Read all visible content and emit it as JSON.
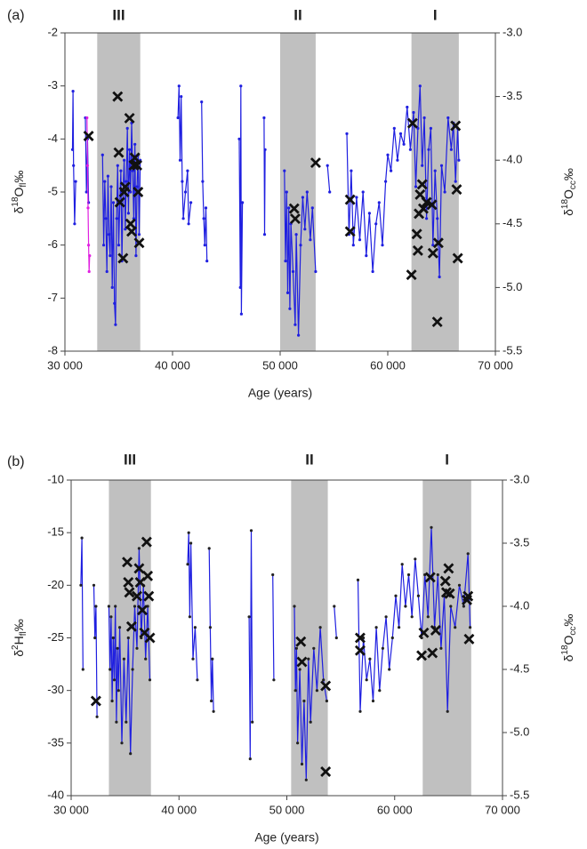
{
  "chart_data": [
    {
      "type": "line",
      "panel_label": "(a)",
      "shaded_regions": [
        {
          "label": "III",
          "xlim": [
            33000,
            37000
          ]
        },
        {
          "label": "II",
          "xlim": [
            50000,
            53300
          ]
        },
        {
          "label": "I",
          "xlim": [
            62200,
            66600
          ]
        }
      ],
      "region_color": "#c0c0c0",
      "x_label": "Age (years)",
      "y_label": {
        "base": "δ",
        "sup": "18",
        "main": "O",
        "sub": "fl",
        "unit": "‰"
      },
      "y2_label": {
        "base": "δ",
        "sup": "18",
        "main": "O",
        "sub": "cc",
        "unit": "‰"
      },
      "xlim": [
        30000,
        70000
      ],
      "xticks": [
        {
          "value": 30000,
          "label": "30 000"
        },
        {
          "value": 40000,
          "label": "40 000"
        },
        {
          "value": 50000,
          "label": "50 000"
        },
        {
          "value": 60000,
          "label": "60 000"
        },
        {
          "value": 70000,
          "label": "70 000"
        }
      ],
      "ylim": [
        -8,
        -2
      ],
      "yticks": [
        -8,
        -7,
        -6,
        -5,
        -4,
        -3,
        -2
      ],
      "y2lim": [
        -5.5,
        -3.0
      ],
      "y2ticks": [
        -5.5,
        {
          "value": -5,
          "label": "-5.0"
        },
        -4.5,
        {
          "value": -4,
          "label": "-4.0"
        },
        -3.5,
        {
          "value": -3,
          "label": "-3.0"
        }
      ],
      "series": [
        {
          "color": "#1f1fe0",
          "point_color": "#1f1fe0",
          "x": [
            30700,
            30750,
            30800,
            30900,
            31000,
            null,
            31900,
            32000,
            32100,
            32200,
            null,
            33500,
            33600,
            33700,
            33800,
            33900,
            34000,
            34100,
            34200,
            34300,
            34400,
            34500,
            34600,
            34700,
            34800,
            34900,
            35000,
            35100,
            35200,
            35300,
            35400,
            35500,
            35600,
            35700,
            35800,
            35900,
            36000,
            36100,
            36200,
            36300,
            36400,
            36500,
            36600,
            36700,
            36800,
            36900,
            37000,
            null,
            40500,
            40600,
            40700,
            40800,
            40900,
            41000,
            41200,
            41400,
            41500,
            41700,
            null,
            42700,
            42800,
            42900,
            43000,
            43100,
            43200,
            null,
            46200,
            46300,
            46350,
            46400,
            46500,
            null,
            48500,
            48550,
            48600,
            null,
            50400,
            50500,
            50600,
            50700,
            50800,
            50900,
            51000,
            51200,
            51400,
            51500,
            51700,
            51900,
            52100,
            52300,
            52500,
            52800,
            53000,
            53300,
            null,
            54400,
            54600,
            null,
            56200,
            56400,
            56600,
            56800,
            57100,
            57400,
            57700,
            58000,
            58300,
            58600,
            58900,
            59200,
            59500,
            59800,
            60000,
            60300,
            60600,
            60900,
            61200,
            61500,
            61800,
            62100,
            62400,
            62600,
            62800,
            63000,
            63200,
            63400,
            63600,
            63800,
            64000,
            64200,
            64400,
            64600,
            64800,
            65000,
            65300,
            65600,
            65900,
            66100,
            66300,
            66500,
            66600
          ],
          "values": [
            -4.2,
            -3.1,
            -4.5,
            -5.6,
            -4.8,
            null,
            -3.6,
            -5.0,
            -4.0,
            -5.2,
            null,
            -4.3,
            -6.0,
            -4.8,
            -5.5,
            -6.5,
            -4.7,
            -5.8,
            -6.2,
            -4.9,
            -6.8,
            -5.2,
            -7.1,
            -7.5,
            -5.5,
            -4.5,
            -6.0,
            -5.2,
            -4.6,
            -6.3,
            -5.0,
            -4.4,
            -5.7,
            -4.8,
            -3.8,
            -5.4,
            -4.2,
            -5.0,
            -3.7,
            -4.6,
            -5.5,
            -4.1,
            -6.2,
            -4.9,
            -4.3,
            -5.8,
            -4.4,
            null,
            -3.6,
            -3.0,
            -4.4,
            -3.2,
            -4.8,
            -5.5,
            -5.0,
            -4.6,
            -5.6,
            -5.2,
            null,
            -3.3,
            -4.8,
            -5.5,
            -6.0,
            -5.3,
            -6.3,
            null,
            -4.0,
            -6.8,
            -3.0,
            -7.3,
            -5.2,
            null,
            -3.6,
            -5.8,
            -4.2,
            null,
            -4.6,
            -6.3,
            -5.0,
            -6.9,
            -5.3,
            -7.2,
            -5.6,
            -6.5,
            -7.5,
            -5.8,
            -7.7,
            -6.0,
            -5.1,
            -5.7,
            -5.0,
            -5.9,
            -5.3,
            -6.5,
            null,
            -4.5,
            -5.0,
            null,
            -3.9,
            -5.8,
            -4.6,
            -6.0,
            -5.1,
            -5.9,
            -5.0,
            -6.2,
            -5.4,
            -6.5,
            -5.6,
            -5.2,
            -6.0,
            -4.8,
            -4.3,
            -4.6,
            -3.8,
            -4.4,
            -3.9,
            -4.1,
            -3.4,
            -4.2,
            -3.5,
            -4.9,
            -3.8,
            -3.0,
            -4.5,
            -3.6,
            -5.5,
            -4.2,
            -3.8,
            -6.0,
            -4.6,
            -5.5,
            -6.6,
            -4.5,
            -5.0,
            -3.6,
            -4.2,
            -3.7,
            -4.8,
            -3.8,
            -4.4
          ]
        },
        {
          "color": "#e020e0",
          "point_color": "#e020e0",
          "x": [
            32050,
            32100,
            32150,
            32200,
            32250,
            32300
          ],
          "values": [
            -3.6,
            -4.5,
            -5.3,
            -6.0,
            -6.5,
            -6.2
          ]
        },
        {
          "axis": "y2",
          "marker": "x",
          "color": "#111111",
          "x": [
            32200,
            34900,
            35000,
            35100,
            35400,
            35500,
            35600,
            36000,
            36100,
            36200,
            36400,
            36500,
            36700,
            36800,
            36900,
            51300,
            51400,
            53300,
            56500,
            56500,
            62200,
            62300,
            62700,
            62800,
            62900,
            63000,
            63200,
            63300,
            63600,
            64100,
            64200,
            64600,
            64700,
            66300,
            66400,
            66500
          ],
          "values": [
            -3.81,
            -3.5,
            -3.94,
            -4.33,
            -4.77,
            -4.25,
            -4.21,
            -3.67,
            -4.5,
            -4.56,
            -4.04,
            -3.98,
            -4.04,
            -4.25,
            -4.65,
            -4.38,
            -4.46,
            -4.02,
            -4.31,
            -4.56,
            -4.9,
            -3.71,
            -4.58,
            -4.71,
            -4.42,
            -4.27,
            -4.19,
            -4.38,
            -4.33,
            -4.35,
            -4.73,
            -5.27,
            -4.65,
            -3.73,
            -4.23,
            -4.77
          ]
        }
      ]
    },
    {
      "type": "line",
      "panel_label": "(b)",
      "shaded_regions": [
        {
          "label": "III",
          "xlim": [
            33500,
            37400
          ]
        },
        {
          "label": "II",
          "xlim": [
            50400,
            53800
          ]
        },
        {
          "label": "I",
          "xlim": [
            62600,
            67100
          ]
        }
      ],
      "region_color": "#c0c0c0",
      "x_label": "Age (years)",
      "y_label": {
        "base": "δ",
        "sup": "2",
        "main": "H",
        "sub": "fl",
        "unit": "‰"
      },
      "y2_label": {
        "base": "δ",
        "sup": "18",
        "main": "O",
        "sub": "cc",
        "unit": "‰"
      },
      "xlim": [
        30000,
        70000
      ],
      "xticks": [
        {
          "value": 30000,
          "label": "30 000"
        },
        {
          "value": 40000,
          "label": "40 000"
        },
        {
          "value": 50000,
          "label": "50 000"
        },
        {
          "value": 60000,
          "label": "60 000"
        },
        {
          "value": 70000,
          "label": "70 000"
        }
      ],
      "ylim": [
        -40,
        -10
      ],
      "yticks": [
        -40,
        -35,
        -30,
        -25,
        -20,
        -15,
        -10
      ],
      "y2lim": [
        -5.5,
        -3.0
      ],
      "y2ticks": [
        -5.5,
        {
          "value": -5,
          "label": "-5.0"
        },
        -4.5,
        {
          "value": -4,
          "label": "-4.0"
        },
        -3.5,
        {
          "value": -3,
          "label": "-3.0"
        }
      ],
      "series": [
        {
          "color": "#1f1fe0",
          "point_color": "#222222",
          "x": [
            30900,
            31000,
            31100,
            null,
            32100,
            32200,
            32300,
            32400,
            null,
            33500,
            33600,
            33700,
            33800,
            33900,
            34000,
            34100,
            34200,
            34300,
            34400,
            34500,
            34700,
            34900,
            35100,
            35300,
            35500,
            35700,
            35900,
            36100,
            36300,
            36500,
            36700,
            36900,
            37100,
            37300,
            null,
            40800,
            40900,
            41000,
            41100,
            41300,
            41500,
            41700,
            null,
            42800,
            42900,
            43000,
            43100,
            43200,
            null,
            46500,
            46600,
            46700,
            46800,
            null,
            48700,
            48800,
            null,
            50700,
            50800,
            50900,
            51000,
            51200,
            51400,
            51600,
            51800,
            52000,
            52200,
            52500,
            52800,
            53100,
            53400,
            53700,
            null,
            54400,
            54600,
            null,
            56600,
            56800,
            57100,
            57400,
            57700,
            58000,
            58300,
            58600,
            58900,
            59200,
            59500,
            59800,
            60100,
            60400,
            60700,
            61000,
            61300,
            61600,
            61900,
            62200,
            62500,
            62800,
            63100,
            63400,
            63700,
            64000,
            64300,
            64600,
            64900,
            65200,
            65600,
            66000,
            66400,
            66800,
            67000
          ],
          "values": [
            -20,
            -15.5,
            -28,
            null,
            -20,
            -25,
            -22,
            -32.5,
            null,
            -22,
            -28,
            -23,
            -31,
            -25,
            -29,
            -22,
            -33,
            -26,
            -30,
            -24,
            -35,
            -27,
            -33,
            -25,
            -36,
            -28,
            -22,
            -26,
            -16.5,
            -25,
            -20,
            -27,
            -22,
            -29,
            null,
            -18,
            -15,
            -23,
            -16,
            -27,
            -24,
            -29,
            null,
            -16.5,
            -24,
            -31,
            -27,
            -32,
            null,
            -23,
            -36.5,
            -14.8,
            -33,
            null,
            -19,
            -29,
            null,
            -22,
            -30,
            -26,
            -35,
            -28,
            -37,
            -31,
            -38.5,
            -27,
            -33,
            -26,
            -30,
            -24,
            -29,
            -31,
            null,
            -22,
            -25,
            null,
            -19.5,
            -32,
            -25,
            -29,
            -27,
            -31,
            -24,
            -30,
            -26,
            -23,
            -28,
            -25,
            -21,
            -24,
            -18,
            -22,
            -19,
            -23,
            -17.5,
            -21,
            -25,
            -19,
            -23,
            -14.5,
            -24,
            -19,
            -26,
            -21,
            -32,
            -22,
            -24,
            -20,
            -22,
            -17,
            -24
          ]
        },
        {
          "axis": "y2",
          "marker": "x",
          "color": "#111111",
          "x": [
            32300,
            35200,
            35300,
            35400,
            35600,
            36100,
            36300,
            36400,
            36600,
            36800,
            37000,
            37100,
            37200,
            37300,
            51300,
            51400,
            53600,
            53600,
            56800,
            56800,
            62500,
            62700,
            63300,
            63500,
            63800,
            64700,
            64800,
            65000,
            65100,
            66700,
            66800,
            66900
          ],
          "values": [
            -4.75,
            -3.65,
            -3.81,
            -3.89,
            -4.16,
            -3.92,
            -3.7,
            -3.81,
            -4.03,
            -4.21,
            -3.49,
            -3.76,
            -3.92,
            -4.25,
            -4.28,
            -4.44,
            -4.63,
            -5.31,
            -4.25,
            -4.35,
            -4.39,
            -4.21,
            -3.77,
            -4.37,
            -4.19,
            -3.8,
            -3.89,
            -3.7,
            -3.9,
            -3.95,
            -3.92,
            -4.26
          ]
        }
      ]
    }
  ]
}
